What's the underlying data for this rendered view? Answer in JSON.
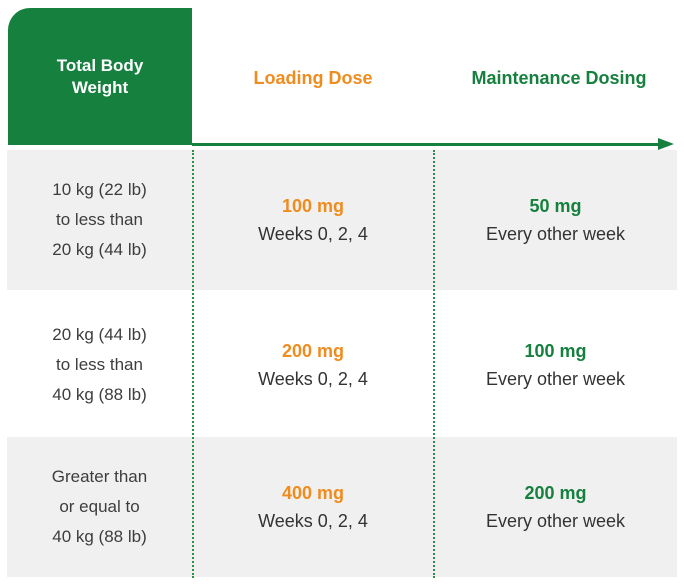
{
  "header": {
    "weight_line1": "Total Body",
    "weight_line2": "Weight",
    "loading": "Loading Dose",
    "maintenance": "Maintenance Dosing"
  },
  "rows": [
    {
      "weight": [
        "10 kg (22 lb)",
        "to less than",
        "20 kg (44 lb)"
      ],
      "loading_dose": "100 mg",
      "loading_schedule": "Weeks 0, 2, 4",
      "maintenance_dose": "50 mg",
      "maintenance_schedule": "Every other week"
    },
    {
      "weight": [
        "20 kg (44 lb)",
        "to less than",
        "40 kg (88 lb)"
      ],
      "loading_dose": "200 mg",
      "loading_schedule": "Weeks 0, 2, 4",
      "maintenance_dose": "100 mg",
      "maintenance_schedule": "Every other week"
    },
    {
      "weight": [
        "Greater than",
        "or equal to",
        "40 kg (88 lb)"
      ],
      "loading_dose": "400 mg",
      "loading_schedule": "Weeks 0, 2, 4",
      "maintenance_dose": "200 mg",
      "maintenance_schedule": "Every other week"
    }
  ],
  "colors": {
    "green": "#16803e",
    "orange": "#f08c1e",
    "row_shade": "#f0f0f0",
    "text": "#3d3d3d"
  }
}
